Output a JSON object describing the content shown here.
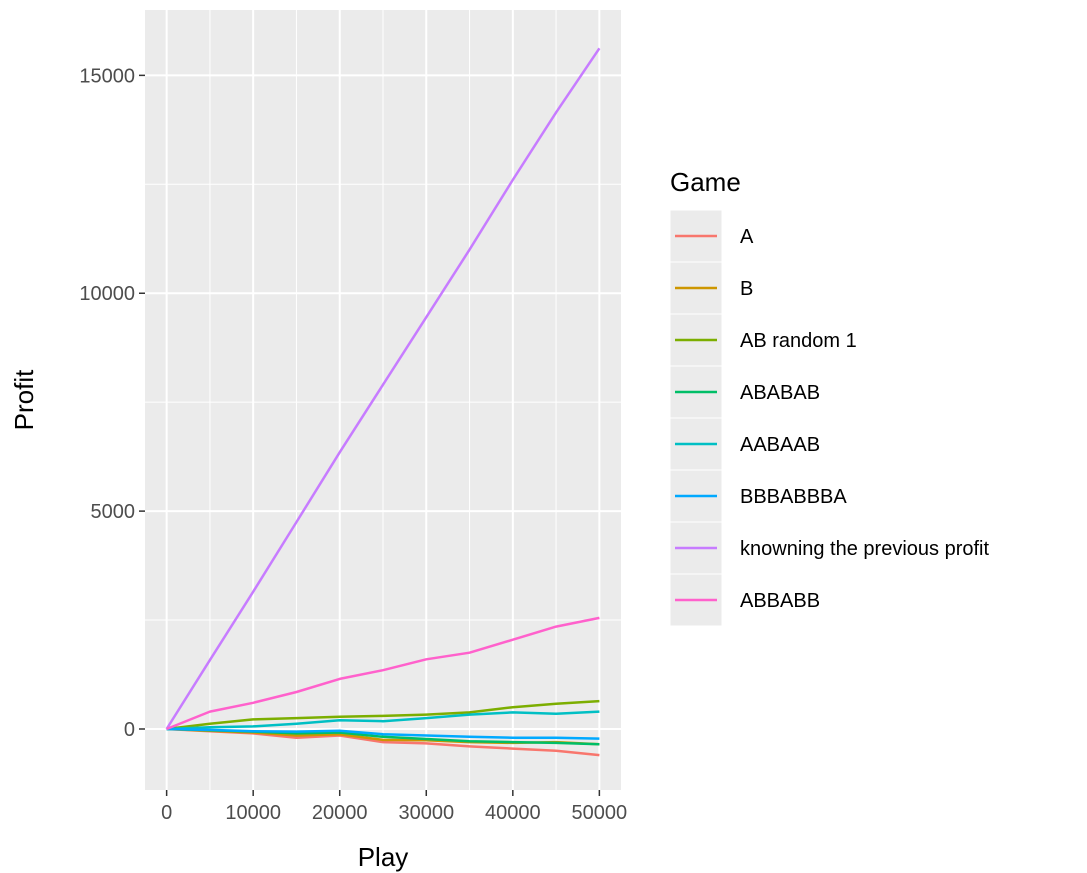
{
  "chart_data": {
    "type": "line",
    "title": "",
    "xlabel": "Play",
    "ylabel": "Profit",
    "xlim": [
      -2500,
      52500
    ],
    "ylim": [
      -1400,
      16500
    ],
    "x_ticks": [
      0,
      10000,
      20000,
      30000,
      40000,
      50000
    ],
    "x_tick_labels": [
      "0",
      "10000",
      "20000",
      "30000",
      "40000",
      "50000"
    ],
    "y_ticks": [
      0,
      5000,
      10000,
      15000
    ],
    "y_tick_labels": [
      "0",
      "5000",
      "10000",
      "15000"
    ],
    "grid": true,
    "legend": {
      "title": "Game",
      "placement": "right"
    },
    "x": [
      0,
      5000,
      10000,
      15000,
      20000,
      25000,
      30000,
      35000,
      40000,
      45000,
      50000
    ],
    "series": [
      {
        "name": "A",
        "color": "#F8766D",
        "values": [
          0,
          -50,
          -100,
          -200,
          -150,
          -300,
          -330,
          -400,
          -450,
          -500,
          -600
        ]
      },
      {
        "name": "B",
        "color": "#CD9600",
        "values": [
          0,
          -40,
          -80,
          -150,
          -120,
          -250,
          -260,
          -300,
          -320,
          -300,
          -350
        ]
      },
      {
        "name": "AB random 1",
        "color": "#7CAE00",
        "values": [
          0,
          120,
          220,
          250,
          280,
          300,
          330,
          380,
          500,
          580,
          640
        ]
      },
      {
        "name": "ABABAB",
        "color": "#00BE67",
        "values": [
          0,
          -30,
          -60,
          -100,
          -80,
          -180,
          -230,
          -280,
          -300,
          -320,
          -350
        ]
      },
      {
        "name": "AABAAB",
        "color": "#00BFC4",
        "values": [
          0,
          40,
          60,
          120,
          200,
          180,
          250,
          330,
          380,
          350,
          400
        ]
      },
      {
        "name": "BBBABBBA",
        "color": "#00A9FF",
        "values": [
          0,
          -20,
          -50,
          -60,
          -40,
          -120,
          -150,
          -180,
          -200,
          -200,
          -220
        ]
      },
      {
        "name": "knowning the previous profit",
        "color": "#C77CFF",
        "values": [
          0,
          1580,
          3150,
          4750,
          6350,
          7900,
          9450,
          11000,
          12600,
          14150,
          15620
        ]
      },
      {
        "name": "ABBABB",
        "color": "#FF61CC",
        "values": [
          0,
          400,
          600,
          850,
          1150,
          1350,
          1600,
          1750,
          2050,
          2350,
          2550
        ]
      }
    ]
  }
}
